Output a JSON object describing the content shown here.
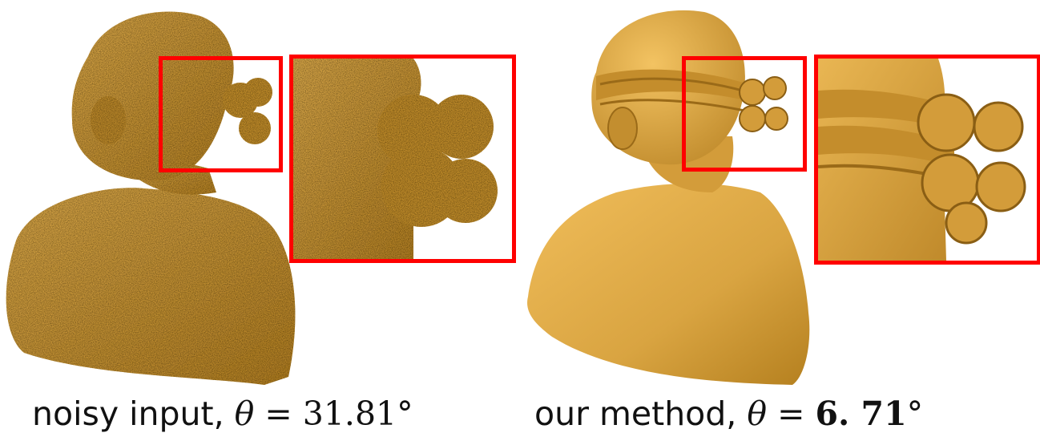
{
  "figure": {
    "left": {
      "caption_text": "noisy input, ",
      "theta_symbol": "θ",
      "equals": " = ",
      "value": "31.81",
      "degree": "°"
    },
    "right": {
      "caption_text": "our method, ",
      "theta_symbol": "θ",
      "equals": " = ",
      "value": "6. 71",
      "degree": "°"
    }
  },
  "colors": {
    "mesh": "#d9a441",
    "mesh_shadow": "#9a6a18",
    "highlight_frame": "#ff0000"
  }
}
